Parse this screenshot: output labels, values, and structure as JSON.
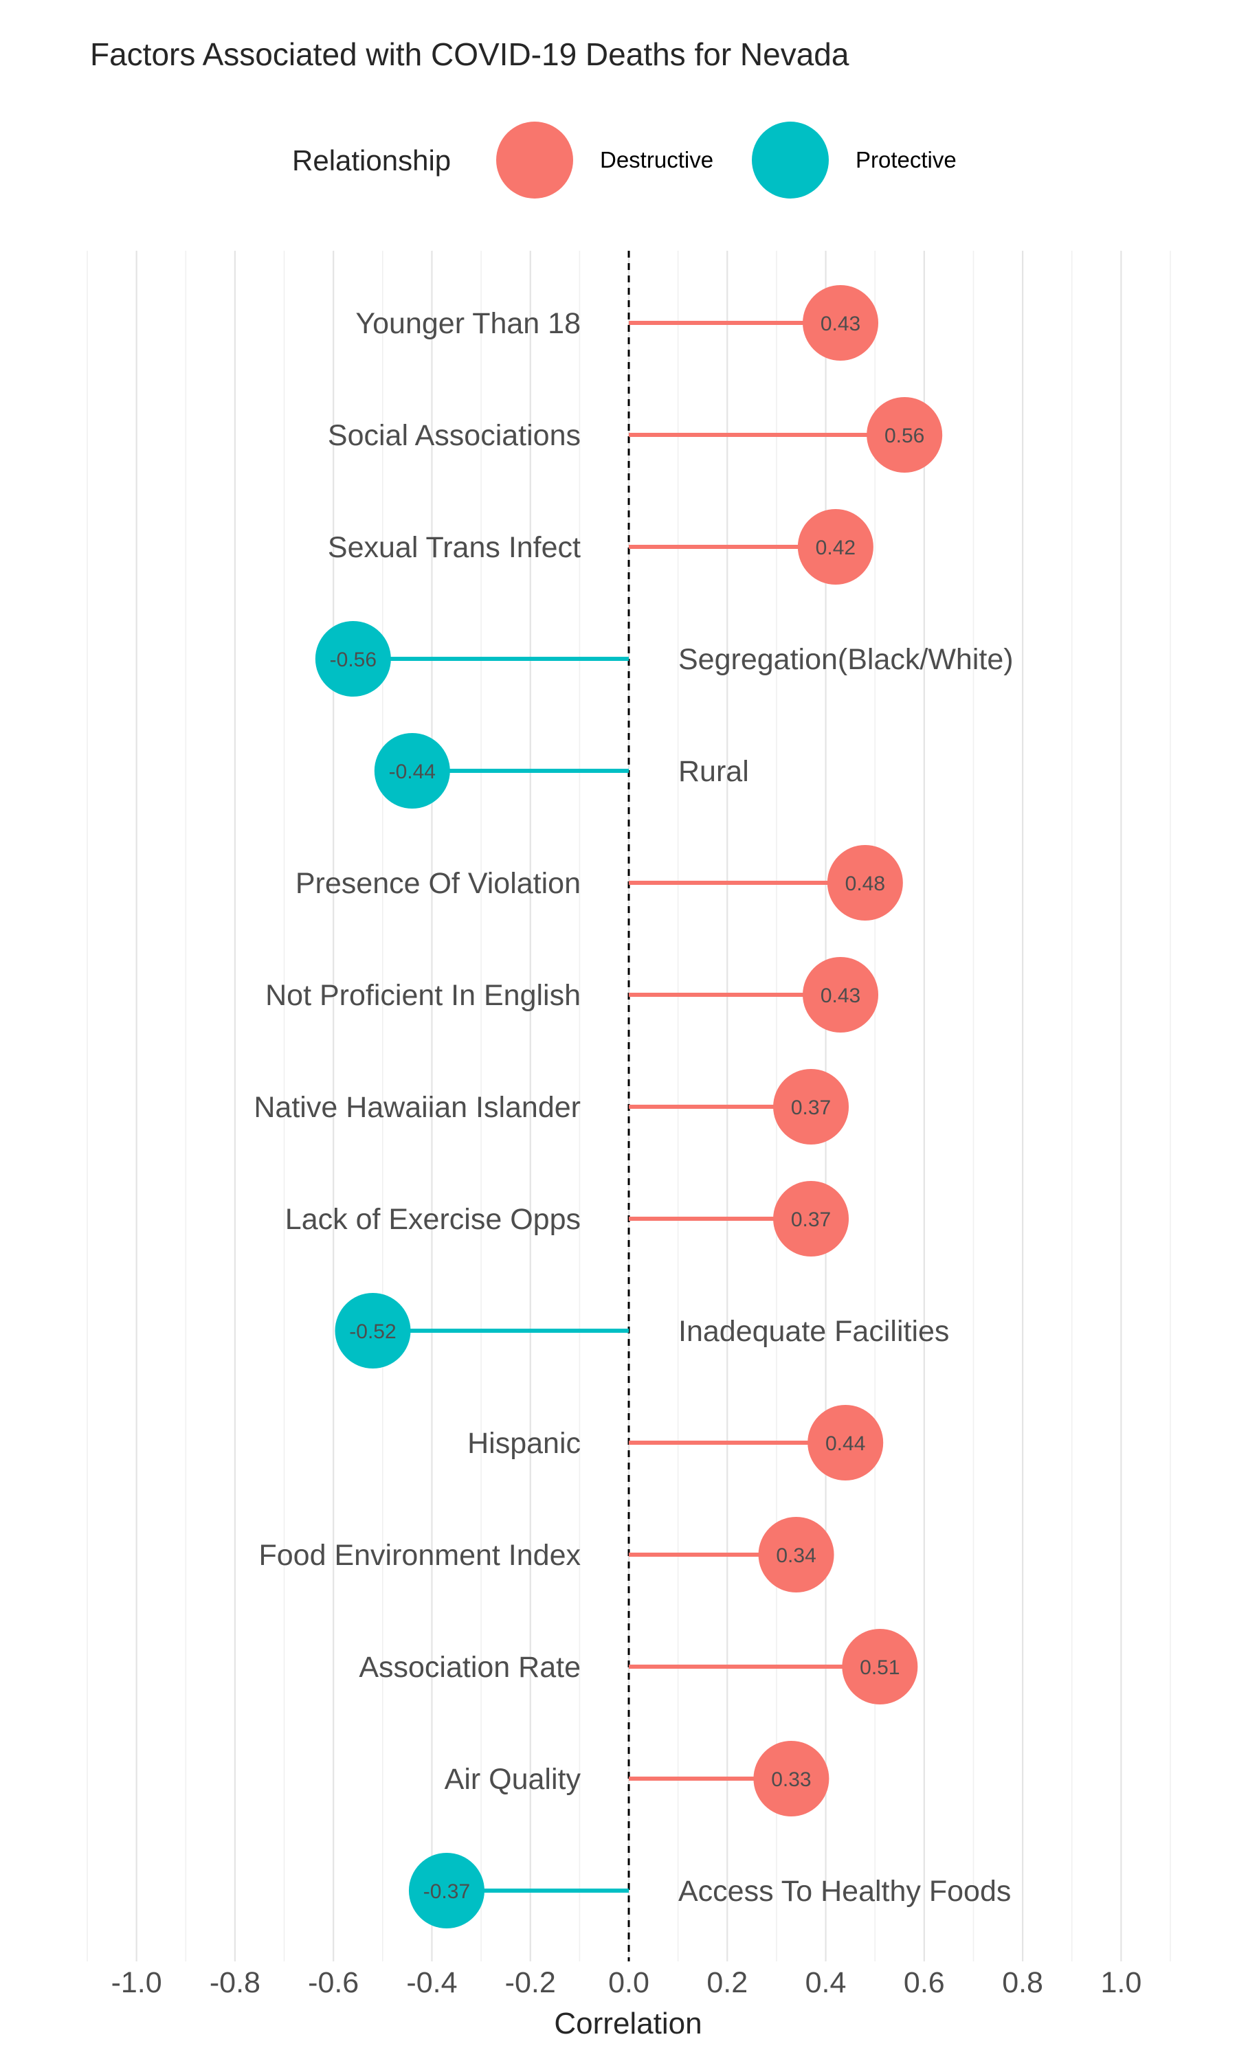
{
  "chart_data": {
    "type": "lollipop",
    "title": "Factors Associated with COVID-19 Deaths for Nevada",
    "xlabel": "Correlation",
    "ylabel": "",
    "xlim": [
      -1.1,
      1.1
    ],
    "x_ticks": [
      -1.0,
      -0.8,
      -0.6,
      -0.4,
      -0.2,
      0.0,
      0.2,
      0.4,
      0.6,
      0.8,
      1.0
    ],
    "x_tick_labels": [
      "-1.0",
      "-0.8",
      "-0.6",
      "-0.4",
      "-0.2",
      "0.0",
      "0.2",
      "0.4",
      "0.6",
      "0.8",
      "1.0"
    ],
    "grid": true,
    "reference_line": 0.0,
    "legend": {
      "title": "Relationship",
      "position": "top",
      "entries": [
        {
          "label": "Destructive",
          "color": "#F8766D"
        },
        {
          "label": "Protective",
          "color": "#00BFC4"
        }
      ]
    },
    "categories": [
      "Younger Than 18",
      "Social Associations",
      "Sexual Trans Infect",
      "Segregation(Black/White)",
      "Rural",
      "Presence Of Violation",
      "Not Proficient In English",
      "Native Hawaiian Islander",
      "Lack of Exercise Opps",
      "Inadequate Facilities",
      "Hispanic",
      "Food Environment Index",
      "Association Rate",
      "Air Quality",
      "Access To Healthy Foods"
    ],
    "values": [
      0.43,
      0.56,
      0.42,
      -0.56,
      -0.44,
      0.48,
      0.43,
      0.37,
      0.37,
      -0.52,
      0.44,
      0.34,
      0.51,
      0.33,
      -0.37
    ],
    "value_labels": [
      "0.43",
      "0.56",
      "0.42",
      "-0.56",
      "-0.44",
      "0.48",
      "0.43",
      "0.37",
      "0.37",
      "-0.52",
      "0.44",
      "0.34",
      "0.51",
      "0.33",
      "-0.37"
    ],
    "relationship": [
      "Destructive",
      "Destructive",
      "Destructive",
      "Protective",
      "Protective",
      "Destructive",
      "Destructive",
      "Destructive",
      "Destructive",
      "Protective",
      "Destructive",
      "Destructive",
      "Destructive",
      "Destructive",
      "Protective"
    ]
  }
}
